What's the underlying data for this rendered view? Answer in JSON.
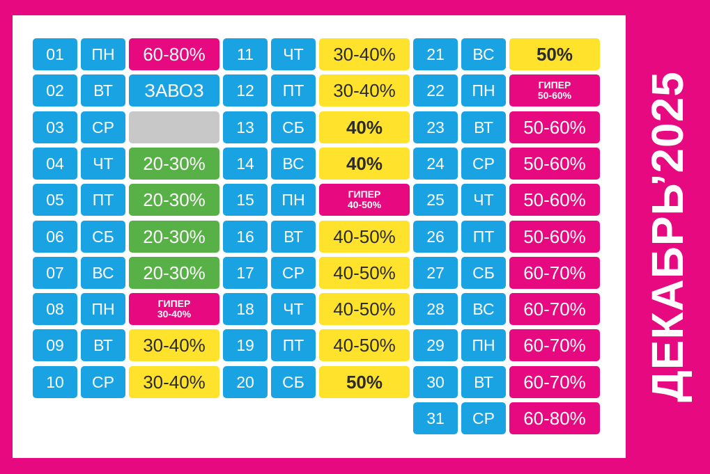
{
  "title": "ДЕКАБРЬ’2025",
  "colors": {
    "frame": "#e6097f",
    "panel": "#ffffff",
    "blue": "#1aa3e3",
    "pink": "#e6097f",
    "yellow": "#ffe22c",
    "green": "#58b146",
    "gray": "#c8c8c8"
  },
  "calendar": [
    {
      "day": "01",
      "weekday": "ПН",
      "color": "pink",
      "lines": [
        "60-80%"
      ]
    },
    {
      "day": "02",
      "weekday": "ВТ",
      "color": "blue",
      "lines": [
        "ЗАВОЗ"
      ]
    },
    {
      "day": "03",
      "weekday": "СР",
      "color": "gray",
      "lines": []
    },
    {
      "day": "04",
      "weekday": "ЧТ",
      "color": "green",
      "lines": [
        "20-30%"
      ]
    },
    {
      "day": "05",
      "weekday": "ПТ",
      "color": "green",
      "lines": [
        "20-30%"
      ]
    },
    {
      "day": "06",
      "weekday": "СБ",
      "color": "green",
      "lines": [
        "20-30%"
      ]
    },
    {
      "day": "07",
      "weekday": "ВС",
      "color": "green",
      "lines": [
        "20-30%"
      ]
    },
    {
      "day": "08",
      "weekday": "ПН",
      "color": "pink",
      "lines": [
        "ГИПЕР",
        "30-40%"
      ]
    },
    {
      "day": "09",
      "weekday": "ВТ",
      "color": "yellow",
      "lines": [
        "30-40%"
      ]
    },
    {
      "day": "10",
      "weekday": "СР",
      "color": "yellow",
      "lines": [
        "30-40%"
      ]
    },
    {
      "day": "11",
      "weekday": "ЧТ",
      "color": "yellow",
      "lines": [
        "30-40%"
      ]
    },
    {
      "day": "12",
      "weekday": "ПТ",
      "color": "yellow",
      "lines": [
        "30-40%"
      ]
    },
    {
      "day": "13",
      "weekday": "СБ",
      "color": "yellow",
      "bold": true,
      "lines": [
        "40%"
      ]
    },
    {
      "day": "14",
      "weekday": "ВС",
      "color": "yellow",
      "bold": true,
      "lines": [
        "40%"
      ]
    },
    {
      "day": "15",
      "weekday": "ПН",
      "color": "pink",
      "lines": [
        "ГИПЕР",
        "40-50%"
      ]
    },
    {
      "day": "16",
      "weekday": "ВТ",
      "color": "yellow",
      "lines": [
        "40-50%"
      ]
    },
    {
      "day": "17",
      "weekday": "СР",
      "color": "yellow",
      "lines": [
        "40-50%"
      ]
    },
    {
      "day": "18",
      "weekday": "ЧТ",
      "color": "yellow",
      "lines": [
        "40-50%"
      ]
    },
    {
      "day": "19",
      "weekday": "ПТ",
      "color": "yellow",
      "lines": [
        "40-50%"
      ]
    },
    {
      "day": "20",
      "weekday": "СБ",
      "color": "yellow",
      "bold": true,
      "lines": [
        "50%"
      ]
    },
    {
      "day": "21",
      "weekday": "ВС",
      "color": "yellow",
      "bold": true,
      "lines": [
        "50%"
      ]
    },
    {
      "day": "22",
      "weekday": "ПН",
      "color": "pink",
      "lines": [
        "ГИПЕР",
        "50-60%"
      ]
    },
    {
      "day": "23",
      "weekday": "ВТ",
      "color": "pink",
      "lines": [
        "50-60%"
      ]
    },
    {
      "day": "24",
      "weekday": "СР",
      "color": "pink",
      "lines": [
        "50-60%"
      ]
    },
    {
      "day": "25",
      "weekday": "ЧТ",
      "color": "pink",
      "lines": [
        "50-60%"
      ]
    },
    {
      "day": "26",
      "weekday": "ПТ",
      "color": "pink",
      "lines": [
        "50-60%"
      ]
    },
    {
      "day": "27",
      "weekday": "СБ",
      "color": "pink",
      "lines": [
        "60-70%"
      ]
    },
    {
      "day": "28",
      "weekday": "ВС",
      "color": "pink",
      "lines": [
        "60-70%"
      ]
    },
    {
      "day": "29",
      "weekday": "ПН",
      "color": "pink",
      "lines": [
        "60-70%"
      ]
    },
    {
      "day": "30",
      "weekday": "ВТ",
      "color": "pink",
      "lines": [
        "60-70%"
      ]
    },
    {
      "day": "31",
      "weekday": "СР",
      "color": "pink",
      "lines": [
        "60-80%"
      ]
    }
  ]
}
